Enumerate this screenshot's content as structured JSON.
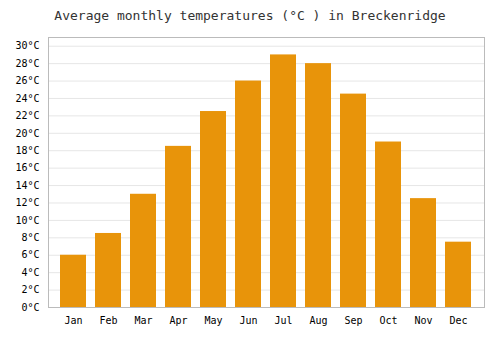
{
  "chart_data": {
    "type": "bar",
    "title": "Average monthly temperatures (°C ) in Breckenridge",
    "categories": [
      "Jan",
      "Feb",
      "Mar",
      "Apr",
      "May",
      "Jun",
      "Jul",
      "Aug",
      "Sep",
      "Oct",
      "Nov",
      "Dec"
    ],
    "values": [
      6.0,
      8.5,
      13.0,
      18.5,
      22.5,
      26.0,
      29.0,
      28.0,
      24.5,
      19.0,
      12.5,
      7.5
    ],
    "color": "#E8940A",
    "ylim": [
      0,
      31
    ],
    "yticks": [
      {
        "value": 0,
        "label": "0°C"
      },
      {
        "value": 2,
        "label": "2°C"
      },
      {
        "value": 4,
        "label": "4°C"
      },
      {
        "value": 6,
        "label": "6°C"
      },
      {
        "value": 8,
        "label": "8°C"
      },
      {
        "value": 10,
        "label": "10°C"
      },
      {
        "value": 12,
        "label": "12°C"
      },
      {
        "value": 14,
        "label": "14°C"
      },
      {
        "value": 16,
        "label": "16°C"
      },
      {
        "value": 18,
        "label": "18°C"
      },
      {
        "value": 20,
        "label": "20°C"
      },
      {
        "value": 22,
        "label": "22°C"
      },
      {
        "value": 24,
        "label": "24°C"
      },
      {
        "value": 26,
        "label": "26°C"
      },
      {
        "value": 28,
        "label": "28°C"
      },
      {
        "value": 30,
        "label": "30°C"
      }
    ],
    "grid": true
  }
}
